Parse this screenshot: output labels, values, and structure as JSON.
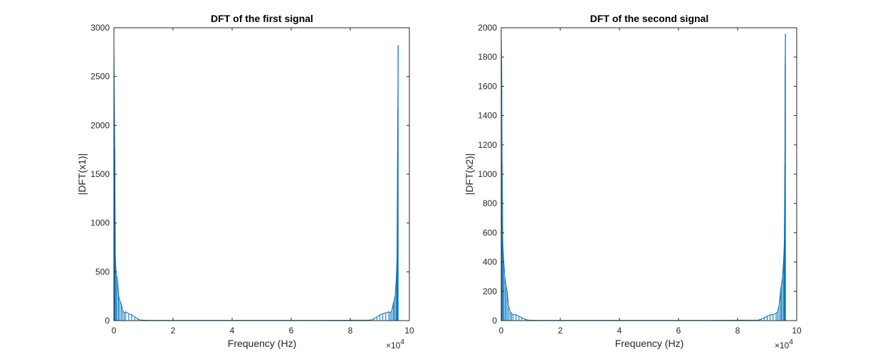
{
  "chart_data": [
    {
      "type": "line",
      "title": "DFT of the first signal",
      "xlabel": "Frequency (Hz)",
      "ylabel": "|DFT(x1)|",
      "xlim": [
        0,
        100000
      ],
      "ylim": [
        0,
        3000
      ],
      "x_exponent_label": "×10",
      "x_exponent_power": "4",
      "x_tick_values": [
        0,
        20000,
        40000,
        60000,
        80000,
        100000
      ],
      "x_tick_labels": [
        "0",
        "2",
        "4",
        "6",
        "8",
        "10"
      ],
      "y_tick_values": [
        0,
        500,
        1000,
        1500,
        2000,
        2500,
        3000
      ],
      "y_tick_labels": [
        "0",
        "500",
        "1000",
        "1500",
        "2000",
        "2500",
        "3000"
      ],
      "color": "#0072BD",
      "series": [
        {
          "x": [
            0,
            150,
            300,
            500,
            800,
            1200,
            1600,
            2000,
            2500,
            3000,
            3500,
            4000,
            5000,
            6000,
            7000,
            8000,
            9000,
            12000,
            40000,
            70000,
            87000,
            88000,
            89000,
            90000,
            91000,
            92000,
            93000,
            93500,
            94000,
            94500,
            94800,
            95200,
            95600,
            95800,
            96000,
            96100,
            96200
          ],
          "y": [
            2820,
            2180,
            1750,
            640,
            460,
            440,
            260,
            200,
            170,
            100,
            80,
            90,
            70,
            60,
            40,
            20,
            5,
            3,
            3,
            3,
            5,
            20,
            40,
            60,
            70,
            80,
            90,
            80,
            100,
            170,
            200,
            260,
            440,
            640,
            1750,
            2180,
            2820
          ]
        }
      ]
    },
    {
      "type": "line",
      "title": "DFT of the second signal",
      "xlabel": "Frequency (Hz)",
      "ylabel": "|DFT(x2)|",
      "xlim": [
        0,
        100000
      ],
      "ylim": [
        0,
        2000
      ],
      "x_exponent_label": "×10",
      "x_exponent_power": "4",
      "x_tick_values": [
        0,
        20000,
        40000,
        60000,
        80000,
        100000
      ],
      "x_tick_labels": [
        "0",
        "2",
        "4",
        "6",
        "8",
        "10"
      ],
      "y_tick_values": [
        0,
        200,
        400,
        600,
        800,
        1000,
        1200,
        1400,
        1600,
        1800,
        2000
      ],
      "y_tick_labels": [
        "0",
        "200",
        "400",
        "600",
        "800",
        "1000",
        "1200",
        "1400",
        "1600",
        "1800",
        "2000"
      ],
      "color": "#0072BD",
      "series": [
        {
          "x": [
            0,
            150,
            300,
            500,
            800,
            1200,
            1600,
            2000,
            2500,
            3000,
            3500,
            4000,
            5000,
            6000,
            7000,
            8000,
            9000,
            12000,
            40000,
            70000,
            87000,
            88000,
            89000,
            90000,
            91000,
            92000,
            93000,
            93500,
            94000,
            94500,
            94800,
            95200,
            95600,
            95800,
            96000,
            96100,
            96200
          ],
          "y": [
            1960,
            1750,
            1080,
            540,
            420,
            300,
            240,
            200,
            100,
            60,
            50,
            40,
            40,
            30,
            20,
            10,
            4,
            2,
            2,
            2,
            4,
            10,
            20,
            30,
            40,
            40,
            50,
            60,
            100,
            200,
            240,
            300,
            420,
            540,
            1080,
            1750,
            1960
          ]
        }
      ]
    }
  ]
}
